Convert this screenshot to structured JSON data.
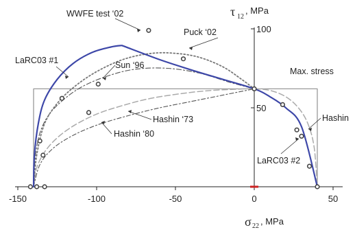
{
  "chart_data": {
    "type": "line",
    "xlim": [
      -150,
      50
    ],
    "ylim": [
      0,
      102
    ],
    "x_axis": {
      "symbol": "σ",
      "subscript": "22",
      "unit": ", MPa",
      "ticks": [
        -150,
        -100,
        -50,
        0,
        50
      ]
    },
    "y_axis": {
      "symbol": "τ",
      "subscript": "12",
      "unit": ", MPa",
      "ticks": [
        50,
        100
      ]
    },
    "colors": {
      "larc": "#3d47a8",
      "dotted": "#777777",
      "dashdot": "#555555",
      "hashin": "#aaaaaa",
      "maxstress": "#999999",
      "test": "#444444",
      "origin_mark": "#cc2222"
    },
    "series": [
      {
        "name": "LaRC03 #1",
        "style": "solid",
        "points": [
          [
            -140,
            0
          ],
          [
            -139.5,
            20
          ],
          [
            -137,
            40
          ],
          [
            -133,
            55
          ],
          [
            -125,
            68
          ],
          [
            -115,
            78
          ],
          [
            -103,
            85
          ],
          [
            -91,
            88.5
          ],
          [
            -84,
            89.5
          ],
          [
            -60,
            80.5
          ],
          [
            -40,
            74
          ],
          [
            -20,
            68
          ],
          [
            0,
            62
          ],
          [
            10,
            57
          ],
          [
            20,
            50
          ],
          [
            30,
            38
          ],
          [
            40,
            0
          ]
        ]
      },
      {
        "name": "Puck '02",
        "style": "dotted",
        "points": [
          [
            -140,
            0
          ],
          [
            -138,
            20
          ],
          [
            -133,
            40
          ],
          [
            -124,
            54
          ],
          [
            -112,
            65
          ],
          [
            -98,
            74
          ],
          [
            -82,
            81
          ],
          [
            -65,
            84.5
          ],
          [
            -50,
            84.5
          ],
          [
            -35,
            82
          ],
          [
            -20,
            76
          ],
          [
            -8,
            68
          ],
          [
            0,
            62
          ]
        ]
      },
      {
        "name": "Sun '96",
        "style": "dashdot",
        "points": [
          [
            -140,
            0
          ],
          [
            -139,
            18
          ],
          [
            -136,
            34
          ],
          [
            -130,
            46
          ],
          [
            -120,
            56
          ],
          [
            -108,
            64
          ],
          [
            -92,
            70.5
          ],
          [
            -75,
            74.5
          ],
          [
            -55,
            75
          ],
          [
            -35,
            72
          ],
          [
            -15,
            66
          ],
          [
            0,
            62
          ]
        ]
      },
      {
        "name": "Hashin '80",
        "style": "dashed",
        "points": [
          [
            -140,
            0
          ],
          [
            -138,
            12
          ],
          [
            -133,
            22
          ],
          [
            -125,
            31
          ],
          [
            -114,
            39
          ],
          [
            -100,
            46
          ],
          [
            -85,
            51
          ],
          [
            -68,
            55.5
          ],
          [
            -50,
            58.5
          ],
          [
            -30,
            60.8
          ],
          [
            -10,
            61.8
          ],
          [
            0,
            62
          ],
          [
            10,
            61
          ],
          [
            20,
            57
          ],
          [
            28,
            50
          ],
          [
            34,
            40
          ],
          [
            38,
            25
          ],
          [
            40,
            0
          ]
        ]
      },
      {
        "name": "Hashin '73",
        "style": "dashdot",
        "points": [
          [
            -140,
            0
          ],
          [
            -136,
            14
          ],
          [
            -128,
            24
          ],
          [
            -116,
            32
          ],
          [
            -100,
            39
          ],
          [
            -80,
            45
          ],
          [
            -60,
            50
          ],
          [
            -40,
            54
          ],
          [
            -20,
            58
          ],
          [
            0,
            62
          ]
        ]
      },
      {
        "name": "Max. stress",
        "style": "solid",
        "points": [
          [
            -140,
            0
          ],
          [
            -140,
            62
          ],
          [
            40,
            62
          ],
          [
            40,
            0
          ]
        ]
      }
    ],
    "test_points": [
      [
        -142,
        0
      ],
      [
        -138,
        0
      ],
      [
        -133,
        0
      ],
      [
        -136,
        29
      ],
      [
        -134,
        20
      ],
      [
        -122,
        56
      ],
      [
        -99,
        65
      ],
      [
        -105,
        47
      ],
      [
        -67,
        99
      ],
      [
        -45,
        81
      ],
      [
        0,
        62
      ],
      [
        18,
        52
      ],
      [
        27,
        36
      ],
      [
        30,
        32
      ],
      [
        35,
        13
      ],
      [
        40,
        0
      ]
    ],
    "annotations": [
      {
        "text": "WWFE test ‘02"
      },
      {
        "text": "Puck ‘02"
      },
      {
        "text": "LaRC03 #1"
      },
      {
        "text": "Sun ‘96"
      },
      {
        "text": "Max. stress"
      },
      {
        "text": "Hashin ‘73"
      },
      {
        "text": "Hashin ‘80"
      },
      {
        "text": "Hashin"
      },
      {
        "text": "LaRC03 #2"
      }
    ]
  }
}
